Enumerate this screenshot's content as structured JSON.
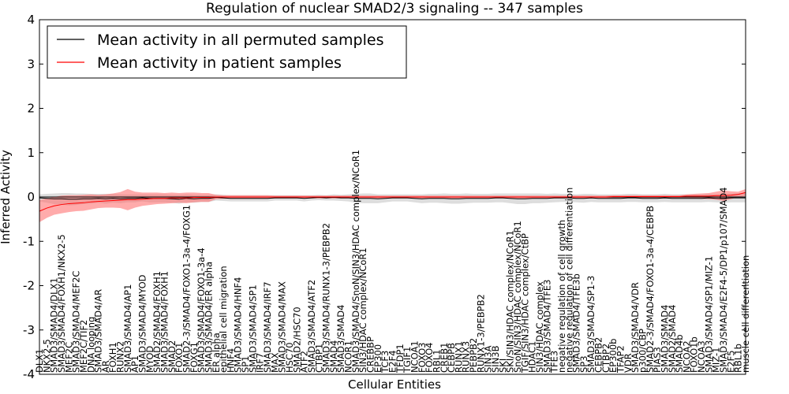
{
  "chart_data": {
    "type": "line",
    "title": "Regulation of nuclear SMAD2/3 signaling -- 347 samples",
    "xlabel": "Cellular Entities",
    "ylabel": "Inferred Activity",
    "ylim": [
      -4,
      4
    ],
    "yticks": [
      "-4",
      "-3",
      "-2",
      "-1",
      "0",
      "1",
      "2",
      "3",
      "4"
    ],
    "ytick_values": [
      -4,
      -3,
      -2,
      -1,
      0,
      1,
      2,
      3,
      4
    ],
    "legend": {
      "placement": "top-left"
    },
    "series": [
      {
        "name": "Mean activity in all permuted samples",
        "color": "#000000",
        "band_color": "#bbbbbb"
      },
      {
        "name": "Mean activity in patient samples",
        "color": "#ff0000",
        "band_color": "#ff6666"
      }
    ],
    "categories": [
      "DLX1",
      "NKX2-5",
      "SMAD3/SMAD4/DLX1",
      "SMAD3/SMAD4/FOXH1/NKX2-5",
      "MEF2C",
      "SMAD3/SMAD4/MEF2C",
      "MEF2C/TIF2",
      "DNA looping",
      "SMAD3/SMAD4/AR",
      "AR",
      "FOXH1",
      "RUNX2",
      "SMAD3/SMAD4/AP1",
      "AP1",
      "SMAD3/SMAD4/MYOD",
      "MYOD",
      "SMAD2/SMAD4/FOXH1",
      "SMAD3/SMAD4/FOXH1",
      "SMAD2",
      "FOXO1",
      "SMAD2-3/SMAD4/FOXO1-3a-4/FOXG1",
      "FOXG1",
      "SMAD3/SMAD4/FOXO1-3a-4",
      "SMAD3/SMAD4/ER alpha",
      "ER alpha",
      "epithelial cell migration",
      "HNF4",
      "SMAD3/SMAD4/HNF4",
      "SP1",
      "SMAD3/SMAD4/SP1",
      "IRF7",
      "SMAD3/SMAD4/IRF7",
      "MAX",
      "SMAD3/SMAD4/MAX",
      "HSC70",
      "SMAD2/HSC70",
      "ATF2",
      "SMAD3/SMAD4/ATF2",
      "CTBP1",
      "SMAD3/SMAD4/RUNX1-3/PEBPB2",
      "SMAD4",
      "SMAD3/SMAD4",
      "NCOR1",
      "SMAD3/SMAD4/SnoN/SIN3/HDAC complex/NCoR1",
      "SIN3/HDAC complex/NCoR1",
      "CREBBP",
      "EP300",
      "TCF3",
      "E2F4",
      "TFDP1",
      "TGIF1",
      "NCOA1",
      "FOXO3",
      "FOXO4",
      "RBL1",
      "CREB1",
      "CEBPB",
      "RUNX1",
      "RUNX3",
      "PEBPB2",
      "RUNX1-3/PEBPB2",
      "SIN3A",
      "SIN3B",
      "SKI",
      "SKI/SIN3/HDAC complex/NCoR1",
      "SnoN/SIN3/HDAC complex/NCoR1",
      "TGIF/SIN3/HDAC complex/CtBP",
      "HDAC1",
      "SIN3/HDAC complex",
      "SMAD3/SMAD4/TFE3",
      "TFE3",
      "negative regulation of cell growth",
      "negative regulation of cell differentiation",
      "SMAD3/SMAD4/TFE3b",
      "SP3",
      "SMAD3/SMAD4/SP1-3",
      "CEBPB2",
      "CTBP2",
      "EP300b",
      "TFAP2",
      "VDR",
      "SMAD3/SMAD4/VDR",
      "p300/CBP",
      "SMAD2-3/SMAD4/FOXO1-3a-4/CEBPB",
      "PIAS3",
      "SMAD3/SMAD4",
      "SMAD2/SMAD4",
      "SMAD4b",
      "NCOA2",
      "FOXO1b",
      "NCOA3",
      "SMAD3/SMAD4/SP1/MIZ-1",
      "MIZ-1",
      "SMAD3/SMAD4/E2F4-5/DP1/p107/SMAD4",
      "E2F5",
      "RBL1b",
      "muscle cell differentiation"
    ],
    "permuted_mean": [
      -0.02,
      -0.03,
      -0.04,
      -0.04,
      -0.05,
      -0.05,
      -0.04,
      -0.04,
      -0.03,
      -0.04,
      -0.03,
      -0.04,
      -0.03,
      -0.03,
      -0.02,
      -0.03,
      -0.03,
      -0.03,
      -0.04,
      -0.05,
      -0.03,
      -0.04,
      -0.03,
      -0.03,
      -0.01,
      -0.02,
      -0.03,
      -0.03,
      -0.03,
      -0.03,
      -0.03,
      -0.03,
      -0.02,
      -0.02,
      -0.02,
      -0.02,
      -0.03,
      -0.02,
      -0.01,
      -0.02,
      -0.01,
      -0.02,
      -0.02,
      -0.03,
      -0.03,
      -0.03,
      -0.04,
      -0.03,
      -0.02,
      -0.02,
      -0.02,
      -0.03,
      -0.04,
      -0.03,
      -0.03,
      -0.03,
      -0.04,
      -0.04,
      -0.03,
      -0.03,
      -0.03,
      -0.03,
      -0.02,
      -0.02,
      -0.03,
      -0.04,
      -0.04,
      -0.03,
      -0.03,
      -0.03,
      -0.02,
      -0.02,
      -0.02,
      -0.03,
      -0.03,
      -0.02,
      -0.03,
      -0.03,
      -0.03,
      -0.03,
      -0.02,
      -0.02,
      -0.03,
      -0.03,
      -0.03,
      -0.02,
      -0.03,
      -0.03,
      -0.03,
      -0.03,
      -0.03,
      -0.02,
      -0.03,
      -0.03,
      -0.02,
      -0.02,
      -0.02
    ],
    "permuted_sd": [
      0.08,
      0.1,
      0.12,
      0.13,
      0.14,
      0.13,
      0.12,
      0.11,
      0.1,
      0.11,
      0.1,
      0.1,
      0.09,
      0.09,
      0.08,
      0.09,
      0.09,
      0.09,
      0.09,
      0.1,
      0.09,
      0.09,
      0.08,
      0.08,
      0.07,
      0.07,
      0.07,
      0.07,
      0.07,
      0.07,
      0.07,
      0.07,
      0.06,
      0.06,
      0.06,
      0.06,
      0.07,
      0.06,
      0.06,
      0.06,
      0.07,
      0.07,
      0.08,
      0.1,
      0.11,
      0.11,
      0.1,
      0.09,
      0.08,
      0.08,
      0.08,
      0.09,
      0.1,
      0.1,
      0.1,
      0.11,
      0.11,
      0.11,
      0.11,
      0.1,
      0.1,
      0.1,
      0.1,
      0.1,
      0.11,
      0.12,
      0.12,
      0.11,
      0.11,
      0.1,
      0.1,
      0.09,
      0.09,
      0.09,
      0.1,
      0.09,
      0.09,
      0.09,
      0.09,
      0.09,
      0.09,
      0.09,
      0.09,
      0.09,
      0.09,
      0.09,
      0.09,
      0.09,
      0.09,
      0.09,
      0.09,
      0.09,
      0.09,
      0.1,
      0.1,
      0.1,
      0.1
    ],
    "patient_mean": [
      -0.32,
      -0.25,
      -0.2,
      -0.17,
      -0.15,
      -0.14,
      -0.13,
      -0.11,
      -0.1,
      -0.09,
      -0.08,
      -0.07,
      -0.06,
      -0.06,
      -0.05,
      -0.04,
      -0.03,
      -0.03,
      -0.02,
      -0.02,
      -0.02,
      -0.01,
      -0.01,
      -0.01,
      0.0,
      0.0,
      0.0,
      0.0,
      0.0,
      0.0,
      0.0,
      0.0,
      0.0,
      0.0,
      0.0,
      0.0,
      0.0,
      0.0,
      0.0,
      0.0,
      0.0,
      0.0,
      0.0,
      0.0,
      0.0,
      0.0,
      0.0,
      0.0,
      0.0,
      0.0,
      0.0,
      0.0,
      0.0,
      0.0,
      0.0,
      0.0,
      0.0,
      0.0,
      0.0,
      0.0,
      0.0,
      0.0,
      0.0,
      0.0,
      0.0,
      0.0,
      0.0,
      0.0,
      0.0,
      0.0,
      0.0,
      0.0,
      0.0,
      0.0,
      0.0,
      0.0,
      0.0,
      0.0,
      0.01,
      0.01,
      0.01,
      0.01,
      0.01,
      0.01,
      0.01,
      0.01,
      0.01,
      0.01,
      0.02,
      0.02,
      0.02,
      0.02,
      0.03,
      0.03,
      0.04,
      0.06,
      0.1
    ],
    "patient_sd": [
      0.25,
      0.22,
      0.2,
      0.2,
      0.19,
      0.18,
      0.18,
      0.17,
      0.15,
      0.15,
      0.16,
      0.18,
      0.24,
      0.18,
      0.15,
      0.14,
      0.13,
      0.12,
      0.12,
      0.11,
      0.12,
      0.11,
      0.1,
      0.1,
      0.05,
      0.04,
      0.04,
      0.04,
      0.04,
      0.04,
      0.04,
      0.04,
      0.03,
      0.03,
      0.03,
      0.03,
      0.03,
      0.03,
      0.03,
      0.03,
      0.03,
      0.03,
      0.03,
      0.03,
      0.03,
      0.03,
      0.03,
      0.03,
      0.03,
      0.03,
      0.03,
      0.03,
      0.03,
      0.03,
      0.03,
      0.03,
      0.03,
      0.03,
      0.03,
      0.03,
      0.03,
      0.03,
      0.03,
      0.03,
      0.03,
      0.03,
      0.03,
      0.03,
      0.03,
      0.03,
      0.03,
      0.03,
      0.03,
      0.03,
      0.03,
      0.03,
      0.03,
      0.03,
      0.03,
      0.03,
      0.03,
      0.03,
      0.03,
      0.03,
      0.03,
      0.03,
      0.03,
      0.03,
      0.04,
      0.05,
      0.06,
      0.07,
      0.09,
      0.12,
      0.09,
      0.06,
      0.08
    ],
    "grid": false
  }
}
